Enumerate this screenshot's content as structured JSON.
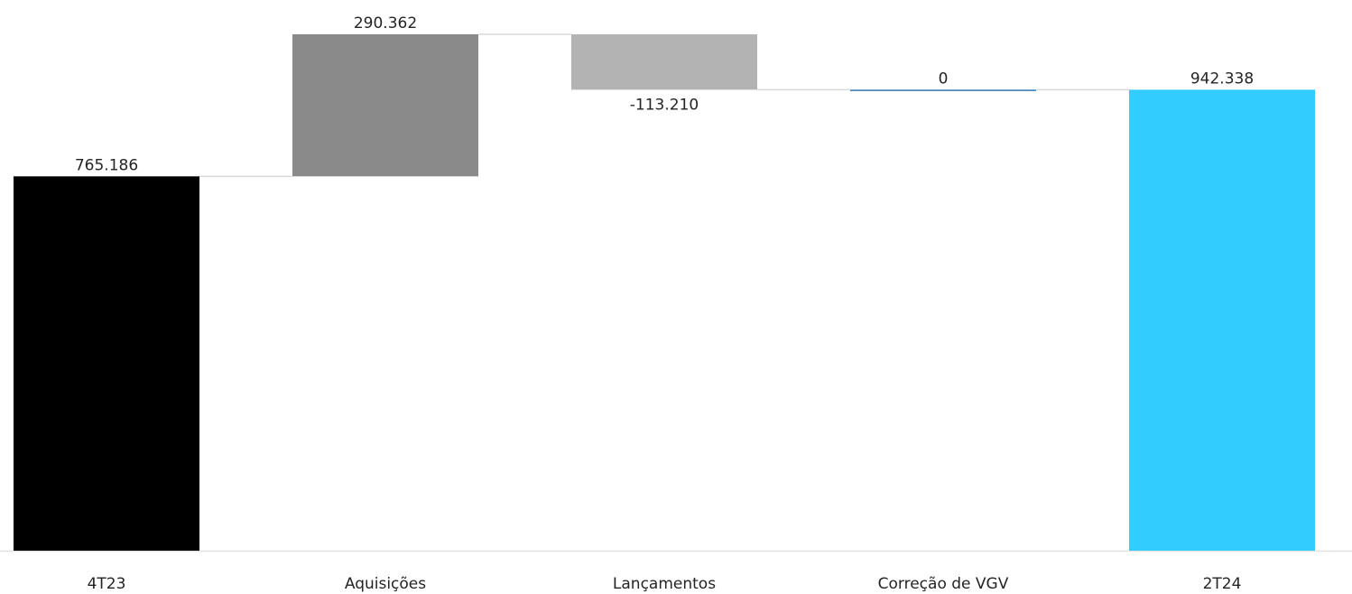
{
  "chart_data": {
    "type": "waterfall",
    "categories": [
      "4T23",
      "Aquisições",
      "Lançamentos",
      "Correção de VGV",
      "2T24"
    ],
    "values": [
      765186,
      290362,
      -113210,
      0,
      942338
    ],
    "value_labels": [
      "765.186",
      "290.362",
      "-113.210",
      "0",
      "942.338"
    ],
    "totals": [
      true,
      false,
      false,
      false,
      true
    ],
    "colors": [
      "#000000",
      "#8a8a8a",
      "#b3b3b3",
      "#2e75b6",
      "#33ccff"
    ]
  }
}
